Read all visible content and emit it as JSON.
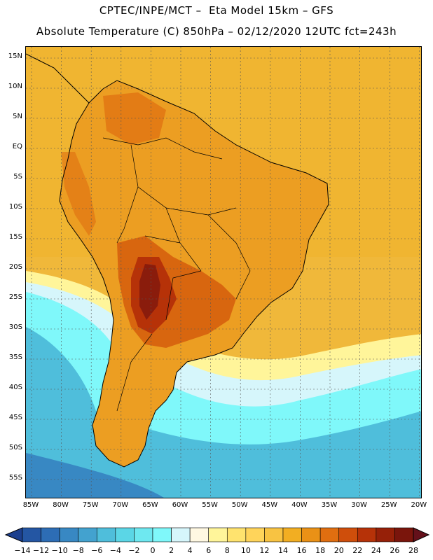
{
  "header": {
    "title_line1": "CPTEC/INPE/MCT –  Eta Model 15km – GFS",
    "title_line2": "Absolute Temperature (C) 850hPa – 02/12/2020 12UTC fct=243h"
  },
  "axes": {
    "lat_labels": [
      "15N",
      "10N",
      "5N",
      "EQ",
      "5S",
      "10S",
      "15S",
      "20S",
      "25S",
      "30S",
      "35S",
      "40S",
      "45S",
      "50S",
      "55S"
    ],
    "lon_labels": [
      "85W",
      "80W",
      "75W",
      "70W",
      "65W",
      "60W",
      "55W",
      "50W",
      "45W",
      "40W",
      "35W",
      "30W",
      "25W",
      "20W"
    ]
  },
  "colorbar": {
    "colors": [
      "#1c3f8e",
      "#2456a3",
      "#2d6db5",
      "#3888c3",
      "#43a2cf",
      "#4fbedb",
      "#5bd6e6",
      "#6ee8f0",
      "#7ff8fa",
      "#d6f6fb",
      "#fff8e2",
      "#fff59a",
      "#ffe36e",
      "#ffd45a",
      "#f8c342",
      "#f2ae22",
      "#ea9116",
      "#e06e10",
      "#cf4e0b",
      "#b63208",
      "#962008",
      "#7a150c",
      "#64101a"
    ],
    "labels": [
      "-14",
      "-12",
      "-10",
      "-8",
      "-6",
      "-4",
      "-2",
      "0",
      "2",
      "4",
      "6",
      "8",
      "10",
      "12",
      "14",
      "16",
      "18",
      "20",
      "22",
      "24",
      "26",
      "28"
    ]
  },
  "map_colors": {
    "ocean_warm": "#f0b83a",
    "land_base": "#ec9e22",
    "land_hot": "#d8660f",
    "land_hottest": "#8a1c0c",
    "cool_band": "#fff59a",
    "cold_band": "#7ff8fa",
    "cold_deep": "#4fbedb",
    "coldest": "#3888c3"
  }
}
